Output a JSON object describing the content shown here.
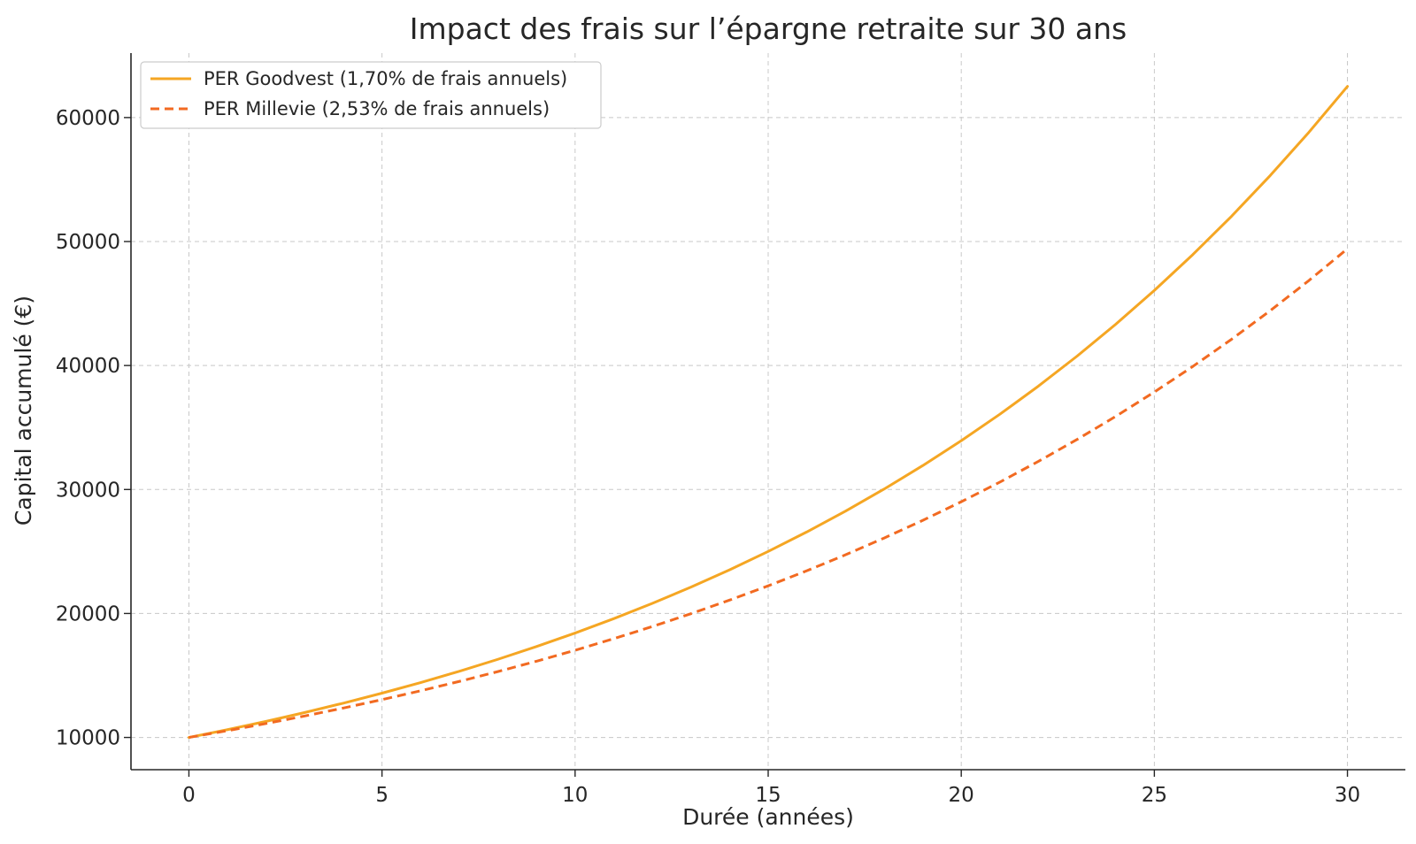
{
  "chart_data": {
    "type": "line",
    "title": "Impact des frais sur l’épargne retraite sur 30 ans",
    "xlabel": "Durée (années)",
    "ylabel": "Capital accumulé (€)",
    "xlim": [
      -1.5,
      31.5
    ],
    "ylim": [
      7400,
      65200
    ],
    "xticks": [
      0,
      5,
      10,
      15,
      20,
      25,
      30
    ],
    "yticks": [
      10000,
      20000,
      30000,
      40000,
      50000,
      60000
    ],
    "grid": true,
    "legend_position": "top-left",
    "x": [
      0,
      1,
      2,
      3,
      4,
      5,
      6,
      7,
      8,
      9,
      10,
      11,
      12,
      13,
      14,
      15,
      16,
      17,
      18,
      19,
      20,
      21,
      22,
      23,
      24,
      25,
      26,
      27,
      28,
      29,
      30
    ],
    "series": [
      {
        "name": "PER Goodvest (1,70% de frais annuels)",
        "color": "#f5a623",
        "dash": "solid",
        "values": [
          10000,
          10630,
          11300,
          12011,
          12768,
          13572,
          14427,
          15336,
          16302,
          17329,
          18421,
          19581,
          20815,
          22126,
          23520,
          25002,
          26577,
          28251,
          30031,
          31923,
          33934,
          36072,
          38344,
          40760,
          43328,
          46057,
          48959,
          52043,
          55322,
          58807,
          62512
        ]
      },
      {
        "name": "PER Millevie (2,53% de frais annuels)",
        "color": "#f26a21",
        "dash": "dashed",
        "values": [
          10000,
          10547,
          11124,
          11732,
          12374,
          13051,
          13765,
          14518,
          15312,
          16149,
          17033,
          17964,
          18947,
          19983,
          21076,
          22229,
          23445,
          24728,
          26080,
          27507,
          29011,
          30598,
          32272,
          34037,
          35899,
          37863,
          39934,
          42118,
          44422,
          46852,
          49415
        ]
      }
    ]
  }
}
